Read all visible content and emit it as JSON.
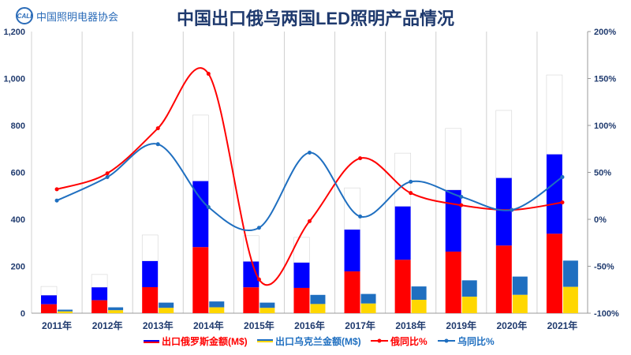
{
  "logo": {
    "mark": "CALI",
    "name": "中国照明电器协会"
  },
  "chart_data": {
    "type": "bar+line",
    "title": "中国出口俄乌两国LED照明产品情况",
    "categories": [
      "2011年",
      "2012年",
      "2013年",
      "2014年",
      "2015年",
      "2016年",
      "2017年",
      "2018年",
      "2019年",
      "2020年",
      "2021年"
    ],
    "y_left": {
      "range": [
        0,
        1200
      ],
      "ticks": [
        "0",
        "200",
        "400",
        "600",
        "800",
        "1,000",
        "1,200"
      ],
      "tick_values": [
        0,
        200,
        400,
        600,
        800,
        1000,
        1200
      ]
    },
    "y_right": {
      "range": [
        -100,
        200
      ],
      "ticks": [
        "-100%",
        "-50%",
        "0%",
        "50%",
        "100%",
        "150%",
        "200%"
      ],
      "tick_values": [
        -100,
        -50,
        0,
        50,
        100,
        150,
        200
      ]
    },
    "series": [
      {
        "name": "出口俄罗斯金额(M$)",
        "type": "bar",
        "axis": "left",
        "colors": [
          "#ff0000",
          "#0000ff",
          "#ffffff"
        ],
        "values": [
          114,
          165,
          333,
          844,
          330,
          323,
          534,
          682,
          787,
          864,
          1015
        ]
      },
      {
        "name": "出口乌克兰金额(M$)",
        "type": "bar",
        "axis": "left",
        "colors": [
          "#ffd700",
          "#1f6fc0"
        ],
        "values": [
          15,
          25,
          45,
          50,
          45,
          78,
          82,
          114,
          140,
          156,
          224
        ]
      },
      {
        "name": "俄同比%",
        "type": "line",
        "axis": "right",
        "color": "#ff0000",
        "values": [
          32,
          49,
          97,
          155,
          -64,
          -2,
          65,
          28,
          15,
          10,
          18
        ]
      },
      {
        "name": "乌同比%",
        "type": "line",
        "axis": "right",
        "color": "#1f6fc0",
        "values": [
          20,
          45,
          80,
          13,
          -9,
          71,
          3,
          40,
          24,
          10,
          45
        ]
      }
    ],
    "legend": "bottom",
    "grid": "vertical"
  }
}
